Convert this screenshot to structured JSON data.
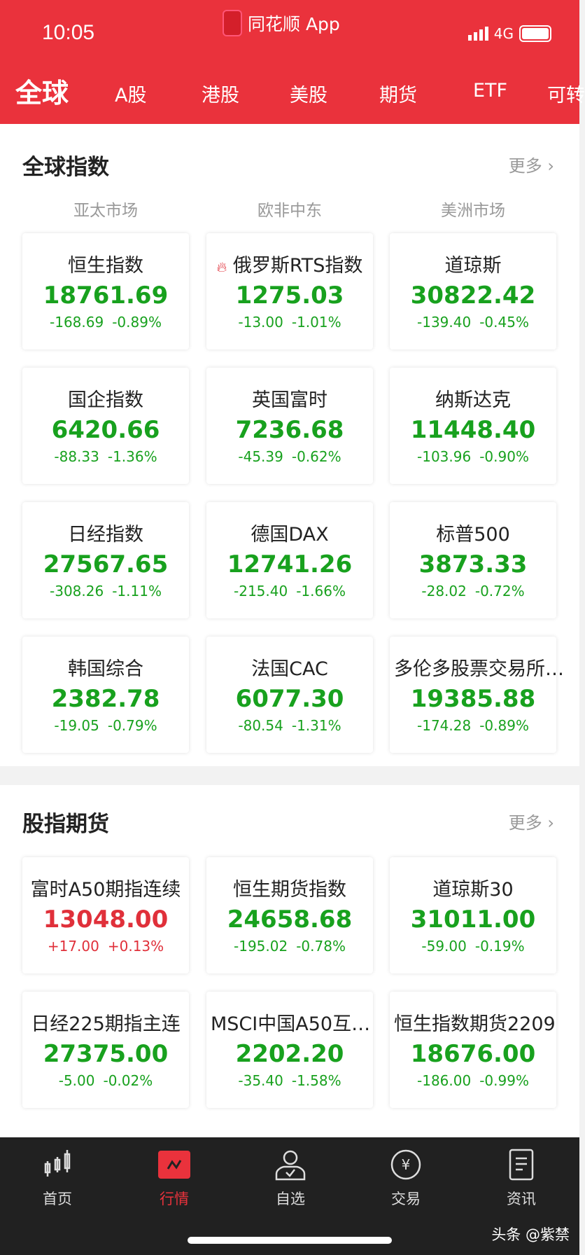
{
  "status_bar": {
    "time": "10:05",
    "app_name": "同花顺 App",
    "network": "4G"
  },
  "tabs": [
    "全球",
    "A股",
    "港股",
    "美股",
    "期货",
    "ETF",
    "可转"
  ],
  "global_indices": {
    "title": "全球指数",
    "more": "更多",
    "regions": [
      "亚太市场",
      "欧非中东",
      "美洲市场"
    ],
    "cards": [
      {
        "name": "恒生指数",
        "value": "18761.69",
        "change": "-168.69",
        "pct": "-0.89%",
        "trend": "down"
      },
      {
        "name": "俄罗斯RTS指数",
        "value": "1275.03",
        "change": "-13.00",
        "pct": "-1.01%",
        "trend": "down",
        "hot": true
      },
      {
        "name": "道琼斯",
        "value": "30822.42",
        "change": "-139.40",
        "pct": "-0.45%",
        "trend": "down"
      },
      {
        "name": "国企指数",
        "value": "6420.66",
        "change": "-88.33",
        "pct": "-1.36%",
        "trend": "down"
      },
      {
        "name": "英国富时",
        "value": "7236.68",
        "change": "-45.39",
        "pct": "-0.62%",
        "trend": "down"
      },
      {
        "name": "纳斯达克",
        "value": "11448.40",
        "change": "-103.96",
        "pct": "-0.90%",
        "trend": "down"
      },
      {
        "name": "日经指数",
        "value": "27567.65",
        "change": "-308.26",
        "pct": "-1.11%",
        "trend": "down"
      },
      {
        "name": "德国DAX",
        "value": "12741.26",
        "change": "-215.40",
        "pct": "-1.66%",
        "trend": "down"
      },
      {
        "name": "标普500",
        "value": "3873.33",
        "change": "-28.02",
        "pct": "-0.72%",
        "trend": "down"
      },
      {
        "name": "韩国综合",
        "value": "2382.78",
        "change": "-19.05",
        "pct": "-0.79%",
        "trend": "down"
      },
      {
        "name": "法国CAC",
        "value": "6077.30",
        "change": "-80.54",
        "pct": "-1.31%",
        "trend": "down"
      },
      {
        "name": "多伦多股票交易所…",
        "value": "19385.88",
        "change": "-174.28",
        "pct": "-0.89%",
        "trend": "down"
      }
    ]
  },
  "index_futures": {
    "title": "股指期货",
    "more": "更多",
    "cards": [
      {
        "name": "富时A50期指连续",
        "value": "13048.00",
        "change": "+17.00",
        "pct": "+0.13%",
        "trend": "up"
      },
      {
        "name": "恒生期货指数",
        "value": "24658.68",
        "change": "-195.02",
        "pct": "-0.78%",
        "trend": "down"
      },
      {
        "name": "道琼斯30",
        "value": "31011.00",
        "change": "-59.00",
        "pct": "-0.19%",
        "trend": "down"
      },
      {
        "name": "日经225期指主连",
        "value": "27375.00",
        "change": "-5.00",
        "pct": "-0.02%",
        "trend": "down"
      },
      {
        "name": "MSCI中国A50互…",
        "value": "2202.20",
        "change": "-35.40",
        "pct": "-1.58%",
        "trend": "down"
      },
      {
        "name": "恒生指数期货2209",
        "value": "18676.00",
        "change": "-186.00",
        "pct": "-0.99%",
        "trend": "down"
      }
    ]
  },
  "bottom_nav": [
    {
      "label": "首页",
      "icon": "candlestick-icon"
    },
    {
      "label": "行情",
      "icon": "market-chart-icon",
      "active": true
    },
    {
      "label": "自选",
      "icon": "user-check-icon"
    },
    {
      "label": "交易",
      "icon": "yen-circle-icon"
    },
    {
      "label": "资讯",
      "icon": "document-icon"
    }
  ],
  "watermark": "头条 @紫禁",
  "colors": {
    "brand": "#ea323c",
    "down": "#18a11e",
    "up": "#e0303a",
    "nav_bg": "#212121"
  }
}
